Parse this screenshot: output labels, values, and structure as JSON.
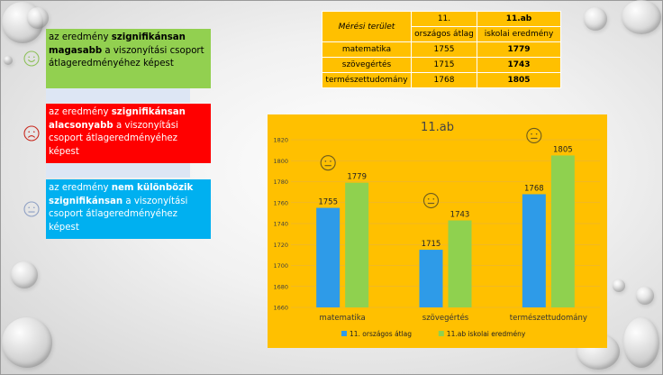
{
  "legend": [
    {
      "face": "smile",
      "face_color": "#8ec05a",
      "box_color": "#92d050",
      "text_color": "#000000",
      "pre": "az eredmény ",
      "bold": "szignifikánsan magasabb",
      "post": " a viszonyítási csoport átlageredményéhez képest"
    },
    {
      "face": "sad",
      "face_color": "#c8281e",
      "box_color": "#ff0000",
      "text_color": "#ffffff",
      "pre": "az eredmény ",
      "bold": "szignifikánsan alacsonyabb",
      "post": " a viszonyítási csoport átlageredményéhez képest"
    },
    {
      "face": "neutral",
      "face_color": "#8ea0c4",
      "box_color": "#00b0f0",
      "text_color": "#ffffff",
      "pre": "az eredmény ",
      "bold": "nem különbözik szignifikánsan",
      "post": " a viszonyítási csoport átlageredményéhez képest"
    }
  ],
  "table": {
    "area_header": "Mérési terület",
    "col1_header_line1": "11.",
    "col1_header_line2": "országos átlag",
    "col2_header_line1": "11.ab",
    "col2_header_line2": "iskolai eredmény",
    "rows": [
      {
        "area": "matematika",
        "national": "1755",
        "school": "1779"
      },
      {
        "area": "szövegértés",
        "national": "1715",
        "school": "1743"
      },
      {
        "area": "természettudomány",
        "national": "1768",
        "school": "1805"
      }
    ]
  },
  "chart_data": {
    "type": "bar",
    "title": "11.ab",
    "categories": [
      "matematika",
      "szövegértés",
      "természettudomány"
    ],
    "series": [
      {
        "name": "11. országos átlag",
        "color": "#2e9be8",
        "values": [
          1755,
          1715,
          1768
        ]
      },
      {
        "name": "11.ab iskolai eredmény",
        "color": "#8fd14f",
        "values": [
          1779,
          1743,
          1805
        ]
      }
    ],
    "ylim": [
      1660,
      1820
    ],
    "ytick_step": 20,
    "grid": true,
    "legend_position": "bottom",
    "category_faces": [
      "neutral",
      "neutral",
      "neutral"
    ]
  }
}
